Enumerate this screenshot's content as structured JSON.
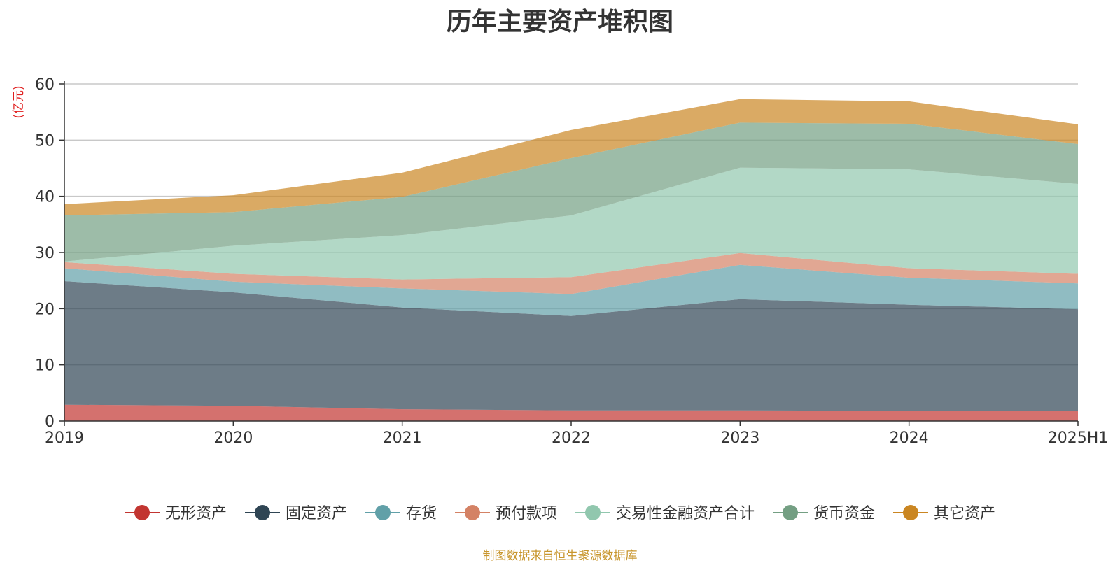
{
  "chart_data": {
    "type": "area",
    "title": "历年主要资产堆积图",
    "ylabel": "亿元",
    "ylabel_display": "(亿元)",
    "ylim": [
      0,
      60
    ],
    "yticks": [
      0,
      10,
      20,
      30,
      40,
      50,
      60
    ],
    "categories": [
      "2019",
      "2020",
      "2021",
      "2022",
      "2023",
      "2024",
      "2025H1"
    ],
    "stacked": true,
    "grid": true,
    "legend_position": "bottom",
    "series": [
      {
        "name": "无形资产",
        "color": "#c23531",
        "values": [
          2.9,
          2.7,
          2.1,
          1.9,
          1.9,
          1.8,
          1.8
        ]
      },
      {
        "name": "固定资产",
        "color": "#2f4554",
        "values": [
          22.0,
          20.2,
          18.1,
          16.8,
          19.8,
          18.9,
          18.1
        ]
      },
      {
        "name": "存货",
        "color": "#61a0a8",
        "values": [
          2.3,
          1.9,
          3.4,
          3.9,
          6.1,
          4.8,
          4.6
        ]
      },
      {
        "name": "预付款项",
        "color": "#d48265",
        "values": [
          1.1,
          1.4,
          1.6,
          3.0,
          2.1,
          1.7,
          1.7
        ]
      },
      {
        "name": "交易性金融资产合计",
        "color": "#91c7ae",
        "values": [
          0.1,
          5.0,
          7.9,
          11.0,
          15.2,
          17.6,
          16.0
        ]
      },
      {
        "name": "货币资金",
        "color": "#749f83",
        "values": [
          8.2,
          6.0,
          6.8,
          10.2,
          8.0,
          8.1,
          7.1
        ]
      },
      {
        "name": "其它资产",
        "color": "#ca8622",
        "values": [
          2.0,
          3.0,
          4.3,
          5.0,
          4.2,
          4.0,
          3.5
        ]
      }
    ]
  },
  "footer": {
    "source": "制图数据来自恒生聚源数据库"
  }
}
